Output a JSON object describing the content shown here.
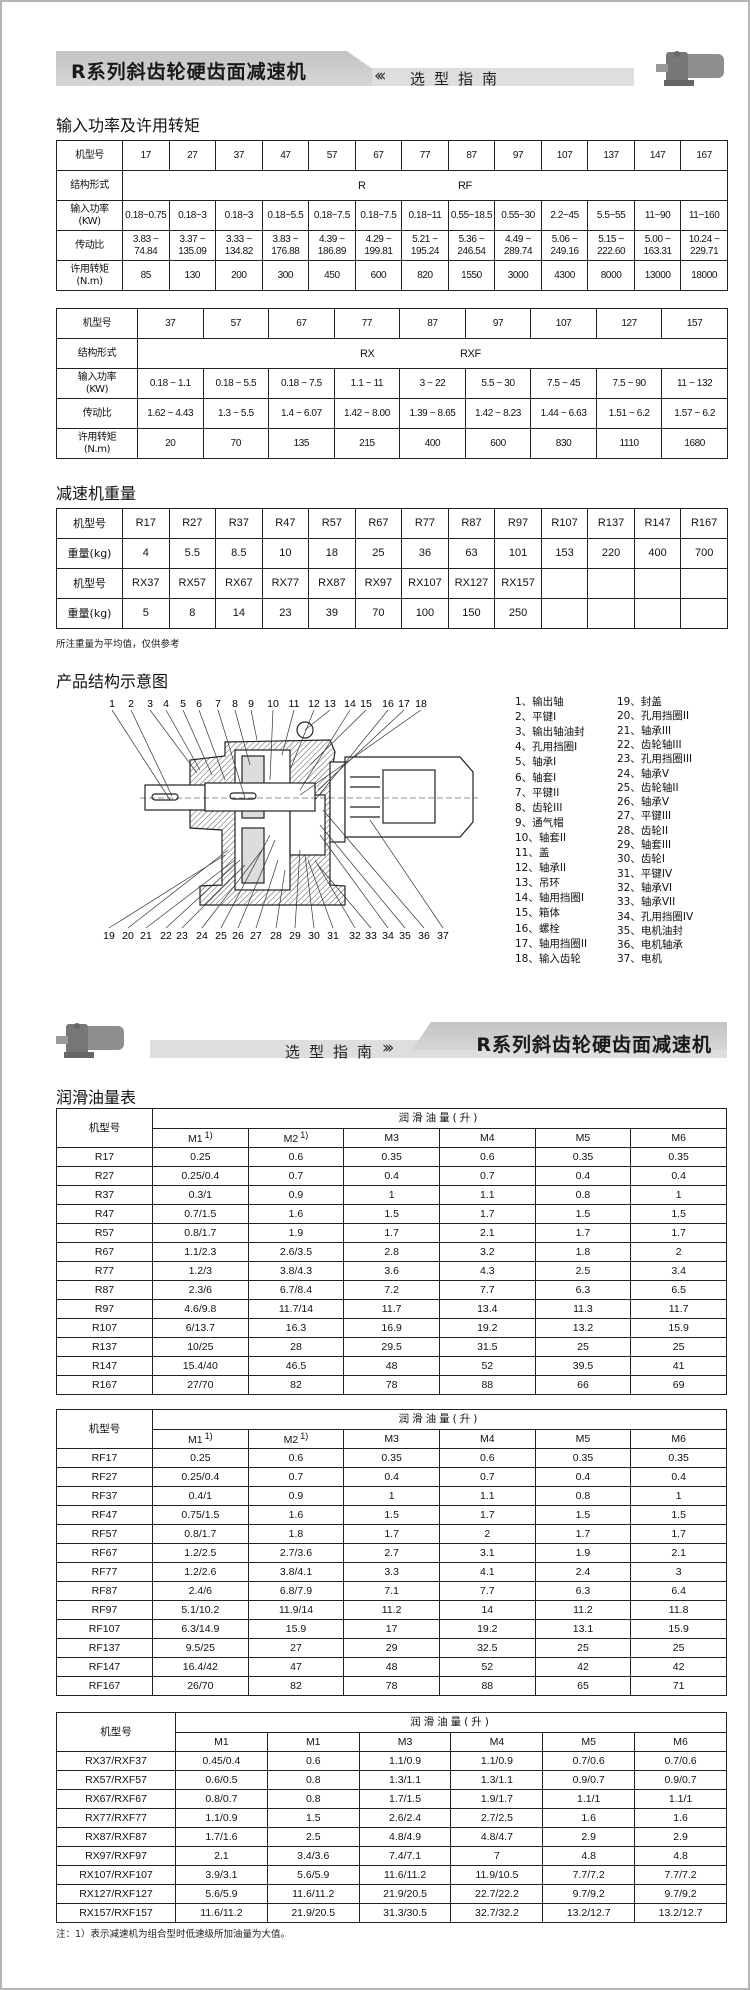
{
  "header1": {
    "title": "R系列斜齿轮硬齿面减速机",
    "subtitle": "选型指南",
    "chevrons": "‹‹‹"
  },
  "header2": {
    "title": "R系列斜齿轮硬齿面减速机",
    "subtitle": "选型指南",
    "chevrons": "›››"
  },
  "colors": {
    "header_band": "#c8c8c8",
    "header_bar": "#dedede",
    "border": "#222222"
  },
  "section1": {
    "title": "输入功率及许用转矩",
    "table_r": {
      "row_labels": [
        "机型号",
        "结构形式",
        "输入功率\n(KW)",
        "传动比",
        "许用转矩\n(N.m)"
      ],
      "models": [
        "17",
        "27",
        "37",
        "47",
        "57",
        "67",
        "77",
        "87",
        "97",
        "107",
        "137",
        "147",
        "167"
      ],
      "structure": [
        "R",
        "RF"
      ],
      "power": [
        "0.18~0.75",
        "0.18~3",
        "0.18~3",
        "0.18~5.5",
        "0.18~7.5",
        "0.18~7.5",
        "0.18~11",
        "0.55~18.5",
        "0.55~30",
        "2.2~45",
        "5.5~55",
        "11~90",
        "11~160"
      ],
      "ratio": [
        "3.83 ~\n74.84",
        "3.37 ~\n135.09",
        "3.33 ~\n134.82",
        "3.83 ~\n176.88",
        "4.39 ~\n186.89",
        "4.29 ~\n199.81",
        "5.21 ~\n195.24",
        "5.36 ~\n246.54",
        "4.49 ~\n289.74",
        "5.06 ~\n249.16",
        "5.15 ~\n222.60",
        "5.00 ~\n163.31",
        "10.24 ~\n229.71"
      ],
      "torque": [
        "85",
        "130",
        "200",
        "300",
        "450",
        "600",
        "820",
        "1550",
        "3000",
        "4300",
        "8000",
        "13000",
        "18000"
      ]
    },
    "table_rx": {
      "row_labels": [
        "机型号",
        "结构形式",
        "输入功率\n(KW)",
        "传动比",
        "许用转矩\n(N.m)"
      ],
      "models": [
        "37",
        "57",
        "67",
        "77",
        "87",
        "97",
        "107",
        "127",
        "157"
      ],
      "structure": [
        "RX",
        "RXF"
      ],
      "power": [
        "0.18 ~ 1.1",
        "0.18 ~ 5.5",
        "0.18 ~ 7.5",
        "1.1 ~ 11",
        "3 ~ 22",
        "5.5 ~ 30",
        "7.5 ~ 45",
        "7.5 ~ 90",
        "11 ~ 132"
      ],
      "ratio": [
        "1.62 ~ 4.43",
        "1.3 ~ 5.5",
        "1.4 ~ 6.07",
        "1.42 ~ 8.00",
        "1.39 ~ 8.65",
        "1.42 ~ 8.23",
        "1.44 ~ 6.63",
        "1.51 ~ 6.2",
        "1.57 ~ 6.2"
      ],
      "torque": [
        "20",
        "70",
        "135",
        "215",
        "400",
        "600",
        "830",
        "1110",
        "1680"
      ]
    }
  },
  "section2": {
    "title": "减速机重量",
    "model_label": "机型号",
    "weight_label": "重量(kg)",
    "r_models": [
      "R17",
      "R27",
      "R37",
      "R47",
      "R57",
      "R67",
      "R77",
      "R87",
      "R97",
      "R107",
      "R137",
      "R147",
      "R167"
    ],
    "r_weights": [
      "4",
      "5.5",
      "8.5",
      "10",
      "18",
      "25",
      "36",
      "63",
      "101",
      "153",
      "220",
      "400",
      "700"
    ],
    "rx_models": [
      "RX37",
      "RX57",
      "RX67",
      "RX77",
      "RX87",
      "RX97",
      "RX107",
      "RX127",
      "RX157",
      "",
      "",
      "",
      ""
    ],
    "rx_weights": [
      "5",
      "8",
      "14",
      "23",
      "39",
      "70",
      "100",
      "150",
      "250",
      "",
      "",
      "",
      ""
    ],
    "note": "所注重量为平均值，仅供参考"
  },
  "section3": {
    "title": "产品结构示意图",
    "top_numbers": [
      "1",
      "2",
      "3",
      "4",
      "5",
      "6",
      "7",
      "8",
      "9",
      "10",
      "11",
      "12",
      "13",
      "14",
      "15",
      "16",
      "17",
      "18"
    ],
    "bottom_numbers": [
      "19",
      "20",
      "21",
      "22",
      "23",
      "24",
      "25",
      "26",
      "27",
      "28",
      "29",
      "30",
      "31",
      "32",
      "33",
      "34",
      "35",
      "36",
      "37"
    ],
    "legend": [
      "1、输出轴",
      "2、平键I",
      "3、输出轴油封",
      "4、孔用挡圈I",
      "5、轴承I",
      "6、轴套I",
      "7、平键II",
      "8、齿轮III",
      "9、通气帽",
      "10、轴套II",
      "11、盖",
      "12、轴承II",
      "13、吊环",
      "14、轴用挡圈I",
      "15、箱体",
      "16、螺栓",
      "17、轴用挡圈II",
      "18、输入齿轮",
      "19、封盖",
      "20、孔用挡圈II",
      "21、轴承III",
      "22、齿轮轴III",
      "23、孔用挡圈III",
      "24、轴承V",
      "25、齿轮轴II",
      "26、轴承V",
      "27、平键III",
      "28、齿轮II",
      "29、轴套III",
      "30、齿轮I",
      "31、平键IV",
      "32、轴承VI",
      "33、轴承VII",
      "34、孔用挡圈IV",
      "35、电机油封",
      "36、电机轴承",
      "37、电机"
    ]
  },
  "section4": {
    "title": "润滑油量表",
    "tables": [
      {
        "model_header": "机型号",
        "group_header": "润滑油量(升)",
        "cols": [
          {
            "label": "M1",
            "note": "1)"
          },
          {
            "label": "M2",
            "note": "1)"
          },
          {
            "label": "M3",
            "note": ""
          },
          {
            "label": "M4",
            "note": ""
          },
          {
            "label": "M5",
            "note": ""
          },
          {
            "label": "M6",
            "note": ""
          }
        ],
        "rows": [
          [
            "R17",
            "0.25",
            "0.6",
            "0.35",
            "0.6",
            "0.35",
            "0.35"
          ],
          [
            "R27",
            "0.25/0.4",
            "0.7",
            "0.4",
            "0.7",
            "0.4",
            "0.4"
          ],
          [
            "R37",
            "0.3/1",
            "0.9",
            "1",
            "1.1",
            "0.8",
            "1"
          ],
          [
            "R47",
            "0.7/1.5",
            "1.6",
            "1.5",
            "1.7",
            "1.5",
            "1.5"
          ],
          [
            "R57",
            "0.8/1.7",
            "1.9",
            "1.7",
            "2.1",
            "1.7",
            "1.7"
          ],
          [
            "R67",
            "1.1/2.3",
            "2.6/3.5",
            "2.8",
            "3.2",
            "1.8",
            "2"
          ],
          [
            "R77",
            "1.2/3",
            "3.8/4.3",
            "3.6",
            "4.3",
            "2.5",
            "3.4"
          ],
          [
            "R87",
            "2.3/6",
            "6.7/8.4",
            "7.2",
            "7.7",
            "6.3",
            "6.5"
          ],
          [
            "R97",
            "4.6/9.8",
            "11.7/14",
            "11.7",
            "13.4",
            "11.3",
            "11.7"
          ],
          [
            "R107",
            "6/13.7",
            "16.3",
            "16.9",
            "19.2",
            "13.2",
            "15.9"
          ],
          [
            "R137",
            "10/25",
            "28",
            "29.5",
            "31.5",
            "25",
            "25"
          ],
          [
            "R147",
            "15.4/40",
            "46.5",
            "48",
            "52",
            "39.5",
            "41"
          ],
          [
            "R167",
            "27/70",
            "82",
            "78",
            "88",
            "66",
            "69"
          ]
        ]
      },
      {
        "model_header": "机型号",
        "group_header": "润滑油量(升)",
        "cols": [
          {
            "label": "M1",
            "note": "1)"
          },
          {
            "label": "M2",
            "note": "1)"
          },
          {
            "label": "M3",
            "note": ""
          },
          {
            "label": "M4",
            "note": ""
          },
          {
            "label": "M5",
            "note": ""
          },
          {
            "label": "M6",
            "note": ""
          }
        ],
        "rows": [
          [
            "RF17",
            "0.25",
            "0.6",
            "0.35",
            "0.6",
            "0.35",
            "0.35"
          ],
          [
            "RF27",
            "0.25/0.4",
            "0.7",
            "0.4",
            "0.7",
            "0.4",
            "0.4"
          ],
          [
            "RF37",
            "0.4/1",
            "0.9",
            "1",
            "1.1",
            "0.8",
            "1"
          ],
          [
            "RF47",
            "0.75/1.5",
            "1.6",
            "1.5",
            "1.7",
            "1.5",
            "1.5"
          ],
          [
            "RF57",
            "0.8/1.7",
            "1.8",
            "1.7",
            "2",
            "1.7",
            "1.7"
          ],
          [
            "RF67",
            "1.2/2.5",
            "2.7/3.6",
            "2.7",
            "3.1",
            "1.9",
            "2.1"
          ],
          [
            "RF77",
            "1.2/2.6",
            "3.8/4.1",
            "3.3",
            "4.1",
            "2.4",
            "3"
          ],
          [
            "RF87",
            "2.4/6",
            "6.8/7.9",
            "7.1",
            "7.7",
            "6.3",
            "6.4"
          ],
          [
            "RF97",
            "5.1/10.2",
            "11.9/14",
            "11.2",
            "14",
            "11.2",
            "11.8"
          ],
          [
            "RF107",
            "6.3/14.9",
            "15.9",
            "17",
            "19.2",
            "13.1",
            "15.9"
          ],
          [
            "RF137",
            "9.5/25",
            "27",
            "29",
            "32.5",
            "25",
            "25"
          ],
          [
            "RF147",
            "16.4/42",
            "47",
            "48",
            "52",
            "42",
            "42"
          ],
          [
            "RF167",
            "26/70",
            "82",
            "78",
            "88",
            "65",
            "71"
          ]
        ]
      },
      {
        "model_header": "机型号",
        "group_header": "润滑油量(升)",
        "cols": [
          {
            "label": "M1",
            "note": ""
          },
          {
            "label": "M1",
            "note": ""
          },
          {
            "label": "M3",
            "note": ""
          },
          {
            "label": "M4",
            "note": ""
          },
          {
            "label": "M5",
            "note": ""
          },
          {
            "label": "M6",
            "note": ""
          }
        ],
        "rows": [
          [
            "RX37/RXF37",
            "0.45/0.4",
            "0.6",
            "1.1/0.9",
            "1.1/0.9",
            "0.7/0.6",
            "0.7/0.6"
          ],
          [
            "RX57/RXF57",
            "0.6/0.5",
            "0.8",
            "1.3/1.1",
            "1.3/1.1",
            "0.9/0.7",
            "0.9/0.7"
          ],
          [
            "RX67/RXF67",
            "0.8/0.7",
            "0.8",
            "1.7/1.5",
            "1.9/1.7",
            "1.1/1",
            "1.1/1"
          ],
          [
            "RX77/RXF77",
            "1.1/0.9",
            "1.5",
            "2.6/2.4",
            "2.7/2.5",
            "1.6",
            "1.6"
          ],
          [
            "RX87/RXF87",
            "1.7/1.6",
            "2.5",
            "4.8/4.9",
            "4.8/4.7",
            "2.9",
            "2.9"
          ],
          [
            "RX97/RXF97",
            "2.1",
            "3.4/3.6",
            "7.4/7.1",
            "7",
            "4.8",
            "4.8"
          ],
          [
            "RX107/RXF107",
            "3.9/3.1",
            "5.6/5.9",
            "11.6/11.2",
            "11.9/10.5",
            "7.7/7.2",
            "7.7/7.2"
          ],
          [
            "RX127/RXF127",
            "5.6/5.9",
            "11.6/11.2",
            "21.9/20.5",
            "22.7/22.2",
            "9.7/9.2",
            "9.7/9.2"
          ],
          [
            "RX157/RXF157",
            "11.6/11.2",
            "21.9/20.5",
            "31.3/30.5",
            "32.7/32.2",
            "13.2/12.7",
            "13.2/12.7"
          ]
        ]
      }
    ],
    "footnote": "注：1）表示减速机为组合型时低速级所加油量为大值。"
  }
}
